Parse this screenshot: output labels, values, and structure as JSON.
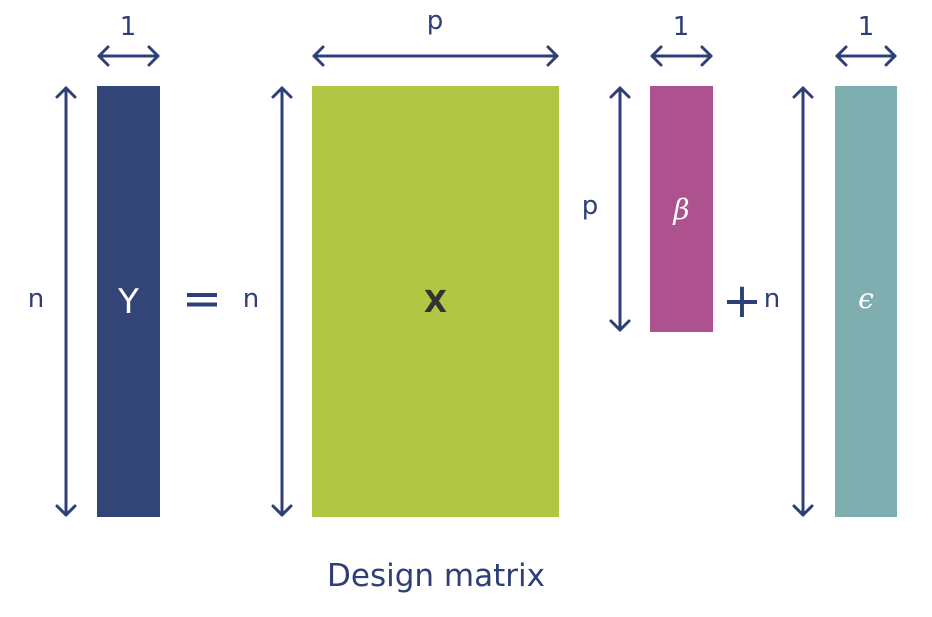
{
  "colors": {
    "arrow": "#2e3f78",
    "y": "#334577",
    "x": "#b1c642",
    "beta": "#ae528f",
    "epsilon": "#7faeb1",
    "text": "#2e3f78"
  },
  "matrix_y": {
    "label": "Y",
    "rows": "n",
    "cols": "1"
  },
  "equals": "=",
  "matrix_x": {
    "label": "X",
    "rows": "n",
    "cols": "p",
    "caption": "Design matrix"
  },
  "matrix_beta": {
    "label": "β",
    "rows": "p",
    "cols": "1"
  },
  "plus": "+",
  "matrix_epsilon": {
    "label": "ϵ",
    "rows": "n",
    "cols": "1"
  }
}
